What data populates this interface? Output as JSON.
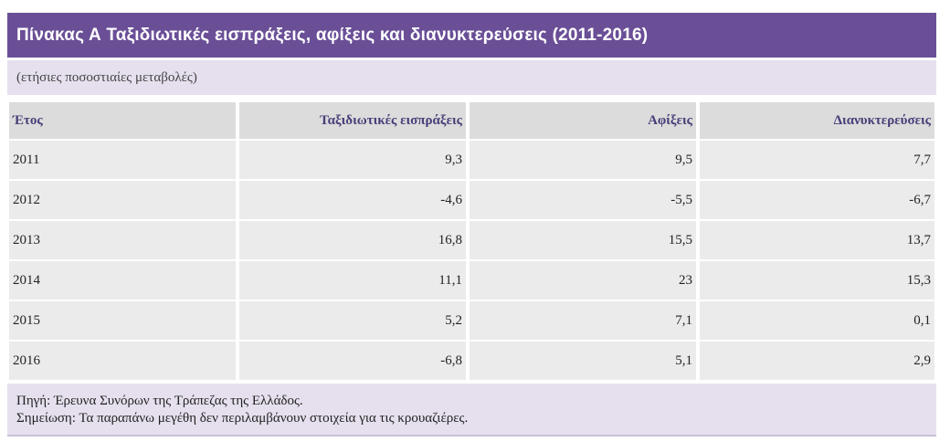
{
  "title": "Πίνακας Α Ταξιδιωτικές εισπράξεις, αφίξεις και διανυκτερεύσεις (2011-2016)",
  "subtitle": "(ετήσιες ποσοστιαίες μεταβολές)",
  "table": {
    "headers": [
      "Έτος",
      "Ταξιδιωτικές εισπράξεις",
      "Αφίξεις",
      "Διανυκτερεύσεις"
    ],
    "rows": [
      [
        "2011",
        "9,3",
        "9,5",
        "7,7"
      ],
      [
        "2012",
        "-4,6",
        "-5,5",
        "-6,7"
      ],
      [
        "2013",
        "16,8",
        "15,5",
        "13,7"
      ],
      [
        "2014",
        "11,1",
        "23",
        "15,3"
      ],
      [
        "2015",
        "5,2",
        "7,1",
        "0,1"
      ],
      [
        "2016",
        "-6,8",
        "5,1",
        "2,9"
      ]
    ]
  },
  "source": "Πηγή: Έρευνα Συνόρων της Τράπεζας της Ελλάδος.",
  "note": "Σημείωση: Τα παραπάνω μεγέθη δεν περιλαμβάνουν στοιχεία για τις κρουαζιέρες.",
  "colors": {
    "title_bar": "#6a4f97",
    "band": "#e6e0ee",
    "header_cell": "#dcdcdc",
    "body_cell": "#ebebeb"
  }
}
